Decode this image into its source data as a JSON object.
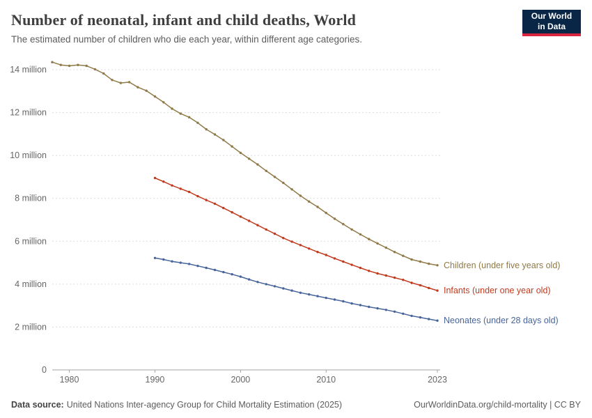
{
  "header": {
    "title": "Number of neonatal, infant and child deaths, World",
    "subtitle": "The estimated number of children who die each year, within different age categories.",
    "logo_line1": "Our World",
    "logo_line2": "in Data"
  },
  "footer": {
    "source_label": "Data source:",
    "source_text": "United Nations Inter-agency Group for Child Mortality Estimation (2025)",
    "credit": "OurWorldinData.org/child-mortality | CC BY"
  },
  "colors": {
    "children": "#8f7a48",
    "infants": "#c23a1e",
    "neonates": "#47659b",
    "grid": "#dcdcdc",
    "axis": "#a3a3a3",
    "tick_text": "#666666"
  },
  "chart_data": {
    "type": "line",
    "title": "Number of neonatal, infant and child deaths, World",
    "xlabel": "",
    "ylabel": "",
    "unit": "millions of deaths per year",
    "x_range": [
      1978,
      2023
    ],
    "ylim_millions": [
      0,
      14
    ],
    "grid": "dashed horizontal",
    "legend_position": "right-of-line-ends",
    "x_ticks": [
      {
        "year": 1980,
        "label": "1980"
      },
      {
        "year": 1990,
        "label": "1990"
      },
      {
        "year": 2000,
        "label": "2000"
      },
      {
        "year": 2010,
        "label": "2010"
      },
      {
        "year": 2023,
        "label": "2023"
      }
    ],
    "y_ticks": [
      {
        "value": 0,
        "label": "0"
      },
      {
        "value": 2,
        "label": "2 million"
      },
      {
        "value": 4,
        "label": "4 million"
      },
      {
        "value": 6,
        "label": "6 million"
      },
      {
        "value": 8,
        "label": "8 million"
      },
      {
        "value": 10,
        "label": "10 million"
      },
      {
        "value": 12,
        "label": "12 million"
      },
      {
        "value": 14,
        "label": "14 million"
      }
    ],
    "series": [
      {
        "name": "children",
        "label": "Children (under five years old)",
        "color": "#8f7a48",
        "start_year": 1978,
        "values_millions": [
          14.35,
          14.22,
          14.18,
          14.22,
          14.18,
          14.02,
          13.82,
          13.52,
          13.38,
          13.42,
          13.18,
          13.02,
          12.75,
          12.48,
          12.18,
          11.95,
          11.78,
          11.52,
          11.22,
          10.98,
          10.72,
          10.42,
          10.12,
          9.85,
          9.58,
          9.28,
          9.0,
          8.72,
          8.42,
          8.12,
          7.85,
          7.6,
          7.32,
          7.05,
          6.8,
          6.55,
          6.32,
          6.1,
          5.9,
          5.7,
          5.5,
          5.32,
          5.15,
          5.05,
          4.95,
          4.88
        ]
      },
      {
        "name": "infants",
        "label": "Infants (under one year old)",
        "color": "#c23a1e",
        "start_year": 1990,
        "values_millions": [
          8.95,
          8.78,
          8.6,
          8.45,
          8.3,
          8.1,
          7.92,
          7.75,
          7.55,
          7.35,
          7.15,
          6.95,
          6.75,
          6.55,
          6.35,
          6.15,
          5.98,
          5.82,
          5.66,
          5.5,
          5.36,
          5.2,
          5.05,
          4.9,
          4.76,
          4.62,
          4.5,
          4.4,
          4.3,
          4.2,
          4.06,
          3.95,
          3.82,
          3.7
        ]
      },
      {
        "name": "neonates",
        "label": "Neonates (under 28 days old)",
        "color": "#47659b",
        "start_year": 1990,
        "values_millions": [
          5.22,
          5.15,
          5.06,
          5.0,
          4.94,
          4.85,
          4.76,
          4.66,
          4.56,
          4.46,
          4.35,
          4.22,
          4.1,
          4.0,
          3.9,
          3.8,
          3.7,
          3.6,
          3.52,
          3.44,
          3.36,
          3.28,
          3.2,
          3.1,
          3.02,
          2.94,
          2.87,
          2.8,
          2.72,
          2.62,
          2.52,
          2.45,
          2.37,
          2.3
        ]
      }
    ]
  }
}
